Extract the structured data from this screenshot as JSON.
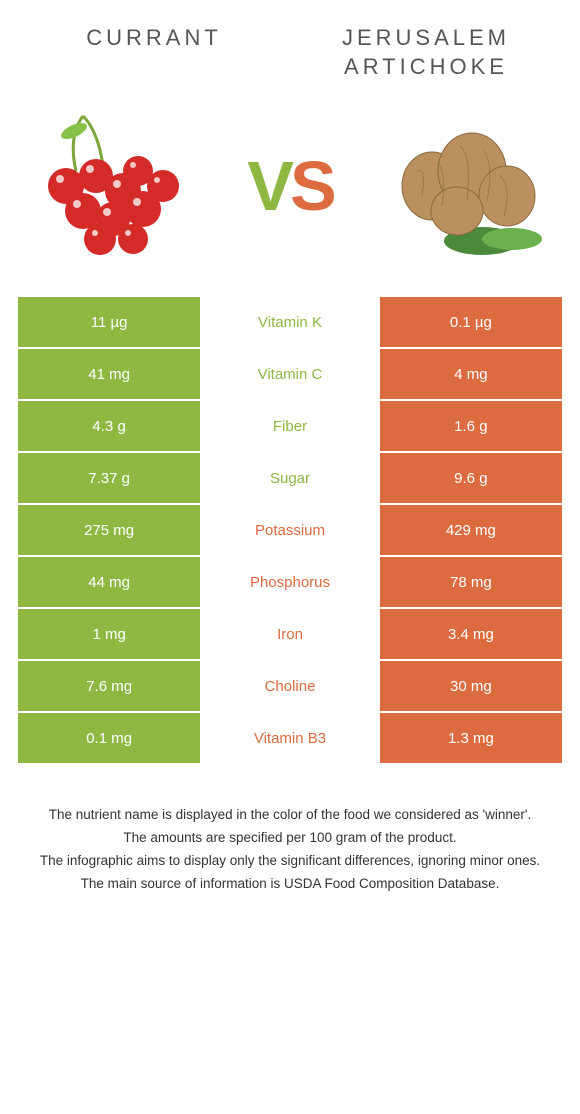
{
  "colors": {
    "green": "#8fb843",
    "orange": "#dc6b3f"
  },
  "left": {
    "title": "CURRANT"
  },
  "right": {
    "title": "JERUSALEM ARTICHOKE"
  },
  "vs": {
    "v": "V",
    "s": "S"
  },
  "rows": [
    {
      "label": "Vitamin K",
      "left": "11 µg",
      "right": "0.1 µg",
      "winner": "left"
    },
    {
      "label": "Vitamin C",
      "left": "41 mg",
      "right": "4 mg",
      "winner": "left"
    },
    {
      "label": "Fiber",
      "left": "4.3 g",
      "right": "1.6 g",
      "winner": "left"
    },
    {
      "label": "Sugar",
      "left": "7.37 g",
      "right": "9.6 g",
      "winner": "left"
    },
    {
      "label": "Potassium",
      "left": "275 mg",
      "right": "429 mg",
      "winner": "right"
    },
    {
      "label": "Phosphorus",
      "left": "44 mg",
      "right": "78 mg",
      "winner": "right"
    },
    {
      "label": "Iron",
      "left": "1 mg",
      "right": "3.4 mg",
      "winner": "right"
    },
    {
      "label": "Choline",
      "left": "7.6 mg",
      "right": "30 mg",
      "winner": "right"
    },
    {
      "label": "Vitamin B3",
      "left": "0.1 mg",
      "right": "1.3 mg",
      "winner": "right"
    }
  ],
  "footnotes": [
    "The nutrient name is displayed in the color of the food we considered as 'winner'.",
    "The amounts are specified per 100 gram of the product.",
    "The infographic aims to display only the significant differences, ignoring minor ones.",
    "The main source of information is USDA Food Composition Database."
  ]
}
